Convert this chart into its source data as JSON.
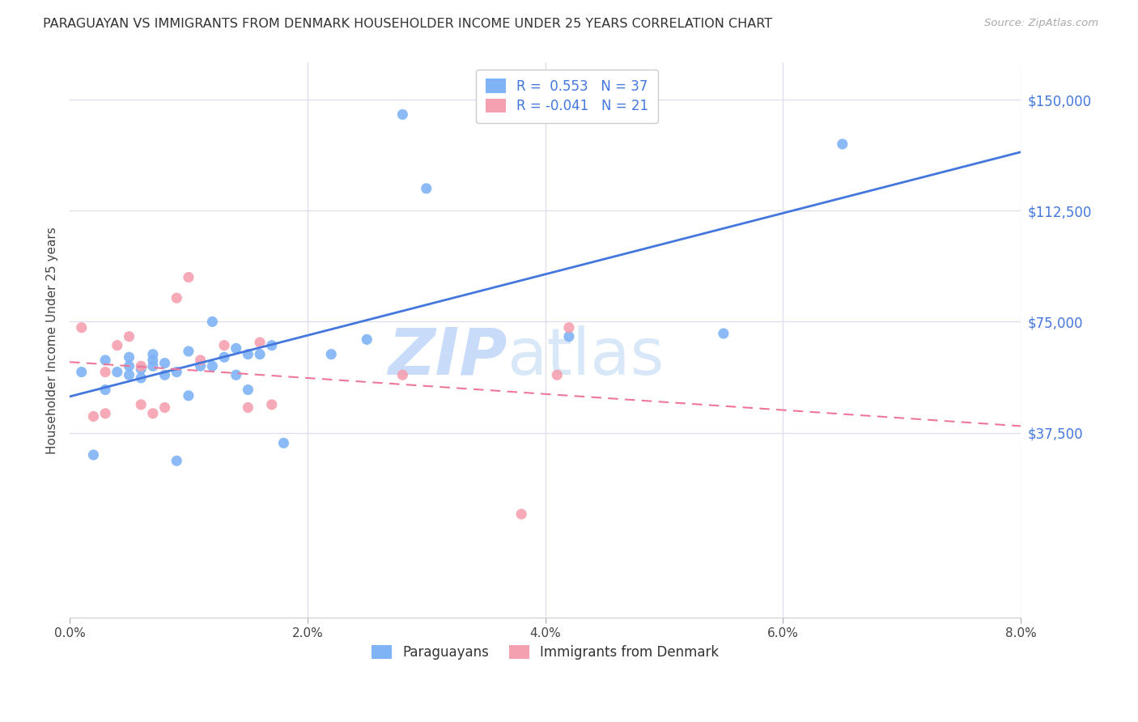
{
  "title": "PARAGUAYAN VS IMMIGRANTS FROM DENMARK HOUSEHOLDER INCOME UNDER 25 YEARS CORRELATION CHART",
  "source": "Source: ZipAtlas.com",
  "ylabel": "Householder Income Under 25 years",
  "xlabel_ticks": [
    "0.0%",
    "2.0%",
    "4.0%",
    "6.0%",
    "8.0%"
  ],
  "xlabel_vals": [
    0.0,
    0.02,
    0.04,
    0.06,
    0.08
  ],
  "ytick_vals": [
    37500,
    75000,
    112500,
    150000
  ],
  "ylim": [
    -25000,
    162500
  ],
  "xlim": [
    0.0,
    0.08
  ],
  "r_blue": 0.553,
  "n_blue": 37,
  "r_pink": -0.041,
  "n_pink": 21,
  "blue_color": "#7EB3F5",
  "pink_color": "#F5A0B0",
  "blue_line_color": "#4477DD",
  "pink_line_color": "#EE7799",
  "watermark_zip": "ZIP",
  "watermark_atlas": "atlas",
  "blue_scatter_x": [
    0.001,
    0.002,
    0.003,
    0.003,
    0.004,
    0.005,
    0.005,
    0.005,
    0.006,
    0.006,
    0.007,
    0.007,
    0.007,
    0.008,
    0.008,
    0.009,
    0.009,
    0.01,
    0.01,
    0.011,
    0.012,
    0.012,
    0.013,
    0.014,
    0.014,
    0.015,
    0.015,
    0.016,
    0.017,
    0.018,
    0.022,
    0.025,
    0.028,
    0.03,
    0.042,
    0.055,
    0.065
  ],
  "blue_scatter_y": [
    58000,
    30000,
    52000,
    62000,
    58000,
    57000,
    60000,
    63000,
    56000,
    59000,
    60000,
    62000,
    64000,
    57000,
    61000,
    28000,
    58000,
    65000,
    50000,
    60000,
    75000,
    60000,
    63000,
    57000,
    66000,
    64000,
    52000,
    64000,
    67000,
    34000,
    64000,
    69000,
    145000,
    120000,
    70000,
    71000,
    135000
  ],
  "pink_scatter_x": [
    0.001,
    0.002,
    0.003,
    0.003,
    0.004,
    0.005,
    0.006,
    0.006,
    0.007,
    0.008,
    0.009,
    0.01,
    0.011,
    0.013,
    0.015,
    0.016,
    0.017,
    0.028,
    0.038,
    0.041,
    0.042
  ],
  "pink_scatter_y": [
    73000,
    43000,
    44000,
    58000,
    67000,
    70000,
    60000,
    47000,
    44000,
    46000,
    83000,
    90000,
    62000,
    67000,
    46000,
    68000,
    47000,
    57000,
    10000,
    57000,
    73000
  ],
  "legend_label_blue": "Paraguayans",
  "legend_label_pink": "Immigrants from Denmark",
  "background_color": "#FFFFFF",
  "grid_color": "#DDDDEE"
}
